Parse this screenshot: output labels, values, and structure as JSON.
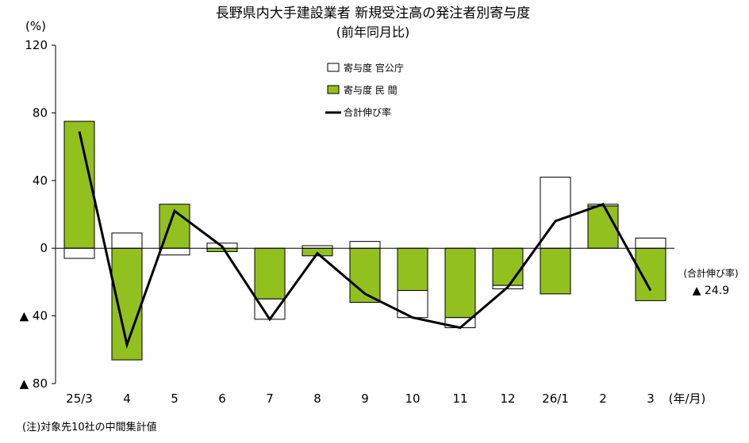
{
  "chart_data": {
    "type": "bar",
    "title": "長野県内大手建設業者 新規受注高の発注者別寄与度",
    "subtitle": "(前年同月比)",
    "ylabel": "(%)",
    "xlabel": "(年/月)",
    "ylim": [
      -80,
      120
    ],
    "yticks": [
      {
        "value": 120,
        "label": "120"
      },
      {
        "value": 80,
        "label": "80"
      },
      {
        "value": 40,
        "label": "40"
      },
      {
        "value": 0,
        "label": "0"
      },
      {
        "value": -40,
        "label": "▲ 40"
      },
      {
        "value": -80,
        "label": "▲ 80"
      }
    ],
    "categories": [
      "25/3",
      "4",
      "5",
      "6",
      "7",
      "8",
      "9",
      "10",
      "11",
      "12",
      "26/1",
      "2",
      "3"
    ],
    "series": [
      {
        "name": "寄与度 官公庁",
        "kind": "bar",
        "color": "#ffffff",
        "values": [
          -6,
          9,
          -4,
          3,
          -12,
          1.5,
          4,
          -16,
          -6,
          -2,
          42,
          1,
          6
        ]
      },
      {
        "name": "寄与度 民 間",
        "kind": "bar",
        "color": "#92c01e",
        "values": [
          75,
          -66,
          26,
          -2,
          -30,
          -4.5,
          -32,
          -25,
          -41,
          -22,
          -27,
          25,
          -31
        ]
      },
      {
        "name": "合計伸び率",
        "kind": "line",
        "color": "#000000",
        "values": [
          69,
          -57,
          22,
          1,
          -42,
          -3,
          -27,
          -41,
          -47,
          -23,
          16,
          26,
          -25
        ]
      }
    ],
    "annotation": {
      "label": "(合計伸び率)",
      "value": "▲ 24.9"
    },
    "legend_position": "top-center",
    "grid": false
  },
  "note": "(注)対象先10社の中間集計値"
}
